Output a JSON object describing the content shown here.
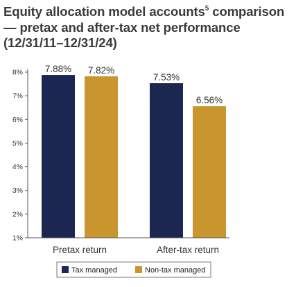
{
  "chart_data": {
    "type": "bar",
    "title": {
      "main": "Equity allocation model accounts",
      "superscript": "5",
      "rest": " comparison — pretax and after-tax net performance (12/31/11–12/31/24)"
    },
    "categories": [
      "Pretax return",
      "After-tax return"
    ],
    "series": [
      {
        "name": "Tax managed",
        "values": [
          7.88,
          7.53
        ],
        "labels": [
          "7.88%",
          "7.53%"
        ],
        "color": "#1b2651"
      },
      {
        "name": "Non-tax managed",
        "values": [
          7.82,
          6.56
        ],
        "labels": [
          "7.82%",
          "6.56%"
        ],
        "color": "#c9952f"
      }
    ],
    "yticks": [
      1,
      2,
      3,
      4,
      5,
      6,
      7,
      8
    ],
    "ytick_labels": [
      "1%",
      "2%",
      "3%",
      "4%",
      "5%",
      "6%",
      "7%",
      "8%"
    ],
    "ylim": [
      1,
      8
    ],
    "xlabel": "",
    "ylabel": "",
    "grid": false,
    "legend_position": "bottom"
  }
}
